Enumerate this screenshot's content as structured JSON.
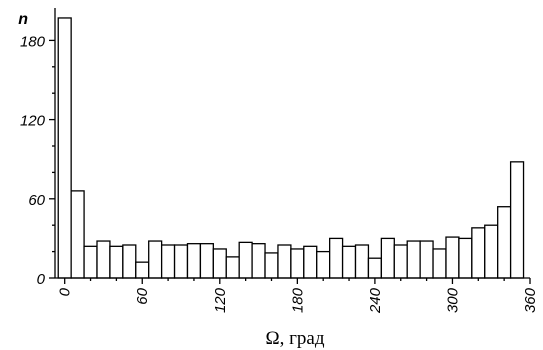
{
  "chart_data": {
    "type": "bar",
    "title": "",
    "xlabel": "Ω, град",
    "ylabel": "n",
    "xlim": [
      -7.5,
      360
    ],
    "ylim": [
      0,
      200
    ],
    "bin_width": 10,
    "grid": false,
    "legend": "none",
    "x_ticks": [
      0,
      60,
      120,
      180,
      240,
      300,
      360
    ],
    "x_tick_labels": [
      "0",
      "60",
      "120",
      "180",
      "240",
      "300",
      "360"
    ],
    "y_ticks": [
      0,
      60,
      120,
      180
    ],
    "y_tick_labels": [
      "0",
      "60",
      "120",
      "180"
    ],
    "bin_starts": [
      -5,
      5,
      15,
      25,
      35,
      45,
      55,
      65,
      75,
      85,
      95,
      105,
      115,
      125,
      135,
      145,
      155,
      165,
      175,
      185,
      195,
      205,
      215,
      225,
      235,
      245,
      255,
      265,
      275,
      285,
      295,
      305,
      315,
      325,
      335,
      345
    ],
    "values": [
      197,
      66,
      24,
      28,
      24,
      25,
      12,
      28,
      25,
      25,
      26,
      26,
      22,
      16,
      27,
      26,
      19,
      25,
      22,
      24,
      20,
      30,
      24,
      25,
      15,
      30,
      25,
      28,
      28,
      22,
      31,
      30,
      38,
      40,
      54,
      88
    ]
  },
  "colors": {
    "bar_fill": "#ffffff",
    "bar_stroke": "#000000",
    "axis": "#000000"
  }
}
